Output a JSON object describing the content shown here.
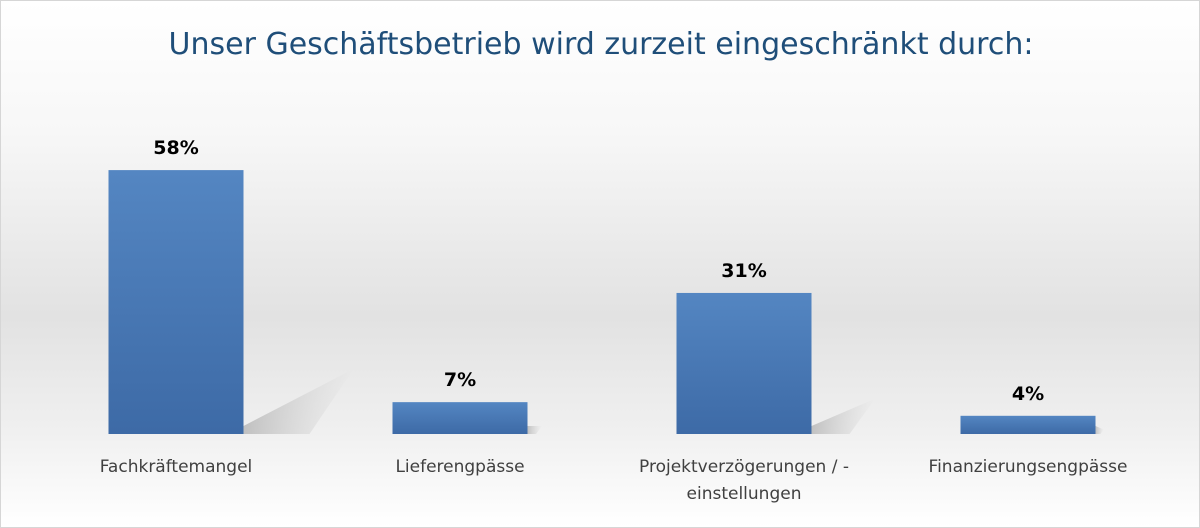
{
  "chart_data": {
    "type": "bar",
    "title": "Unser Geschäftsbetrieb wird zurzeit eingeschränkt durch:",
    "categories": [
      [
        "Fachkräftemangel"
      ],
      [
        "Lieferengpässe"
      ],
      [
        "Projektverzögerungen / -",
        "einstellungen"
      ],
      [
        "Finanzierungsengpässe"
      ]
    ],
    "values": [
      58,
      7,
      31,
      4
    ],
    "data_labels": [
      "58%",
      "7%",
      "31%",
      "4%"
    ],
    "unit": "%",
    "ylim": [
      0,
      60
    ],
    "grid": false,
    "legend": "none",
    "bar_color": "#4a7ab5"
  }
}
